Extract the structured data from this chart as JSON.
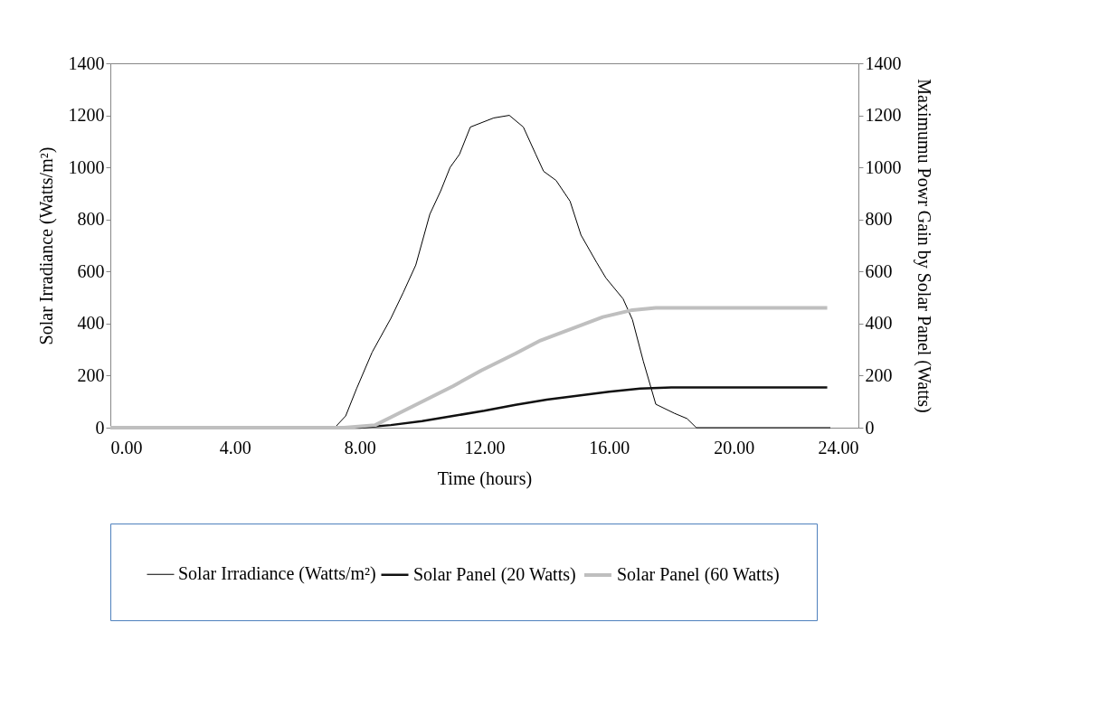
{
  "chart_data": {
    "type": "line",
    "xlabel": "Time (hours)",
    "ylabel": "Solar Irradiance (Watts/m²)",
    "y2label": "Maximumu Powr Gain by Solar Panel (Watts)",
    "xlim": [
      0,
      24
    ],
    "xticks": [
      {
        "value": 0,
        "label": "0.00"
      },
      {
        "value": 4,
        "label": "4.00"
      },
      {
        "value": 8,
        "label": "8.00"
      },
      {
        "value": 12,
        "label": "12.00"
      },
      {
        "value": 16,
        "label": "16.00"
      },
      {
        "value": 20,
        "label": "20.00"
      },
      {
        "value": 24,
        "label": "24.00"
      }
    ],
    "ylim": [
      0,
      1400
    ],
    "yticks": [
      0,
      200,
      400,
      600,
      800,
      1000,
      1200,
      1400
    ],
    "y2lim": [
      0,
      1400
    ],
    "y2ticks": [
      0,
      200,
      400,
      600,
      800,
      1000,
      1200,
      1400
    ],
    "grid": false,
    "legend": "bottom",
    "marker": "none",
    "line_style": "solid",
    "series": [
      {
        "name": "Solar Irradiance (Watts/m²)",
        "color": "#000000",
        "x": [
          0,
          7.2,
          7.55,
          7.9,
          8.4,
          9.0,
          9.4,
          9.8,
          10.25,
          10.6,
          10.9,
          11.2,
          11.55,
          12.3,
          12.8,
          13.25,
          13.65,
          13.9,
          14.3,
          14.75,
          15.1,
          15.6,
          15.9,
          16.45,
          16.75,
          17.1,
          17.5,
          18.1,
          18.5,
          18.8,
          23.1
        ],
        "values": [
          0,
          0,
          45,
          150,
          290,
          420,
          520,
          625,
          820,
          910,
          1000,
          1050,
          1155,
          1190,
          1200,
          1155,
          1050,
          985,
          950,
          870,
          740,
          635,
          575,
          495,
          415,
          255,
          90,
          55,
          35,
          0,
          0
        ]
      },
      {
        "name": "Solar Panel (20 Watts)",
        "color": "#111111",
        "axis": "y2",
        "x": [
          0,
          8,
          9,
          10,
          11,
          12,
          13,
          14,
          14.8,
          16,
          17,
          18,
          23
        ],
        "values": [
          0,
          0,
          10,
          25,
          45,
          65,
          88,
          108,
          120,
          138,
          150,
          155,
          155
        ]
      },
      {
        "name": "Solar Panel (60 Watts)",
        "color": "#bfbfbf",
        "axis": "y2",
        "x": [
          0,
          7.5,
          8.5,
          9,
          10,
          11,
          11.9,
          13,
          13.8,
          14.8,
          15.8,
          16.75,
          17.5,
          23
        ],
        "values": [
          0,
          0,
          10,
          40,
          100,
          160,
          220,
          285,
          335,
          380,
          425,
          452,
          460,
          460
        ]
      }
    ]
  }
}
